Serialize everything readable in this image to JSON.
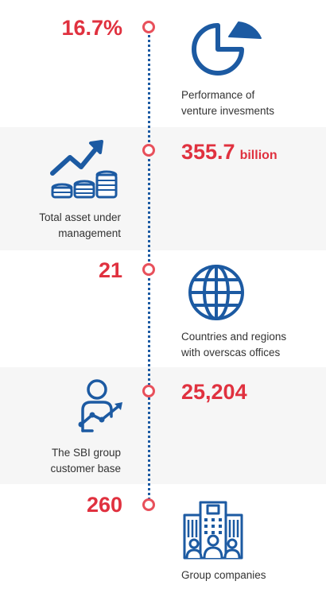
{
  "colors": {
    "accent_red": "#e0313f",
    "icon_blue": "#1c5aa2",
    "node_ring": "#e8505b",
    "band_gray": "#f6f6f6"
  },
  "items": [
    {
      "value": "16.7%",
      "label_lines": [
        "Performance of",
        "venture invesments"
      ],
      "icon": "pie-chart-icon"
    },
    {
      "value": "355.7",
      "unit": "billion",
      "label_lines": [
        "Total asset under",
        "management"
      ],
      "icon": "growth-coins-icon"
    },
    {
      "value": "21",
      "label_lines": [
        "Countries and regions",
        "with overscas offices"
      ],
      "icon": "globe-icon"
    },
    {
      "value": "25,204",
      "label_lines": [
        "The SBI group",
        "customer base"
      ],
      "icon": "customer-growth-icon"
    },
    {
      "value": "260",
      "label_lines": [
        "Group companies"
      ],
      "icon": "building-group-icon"
    }
  ]
}
